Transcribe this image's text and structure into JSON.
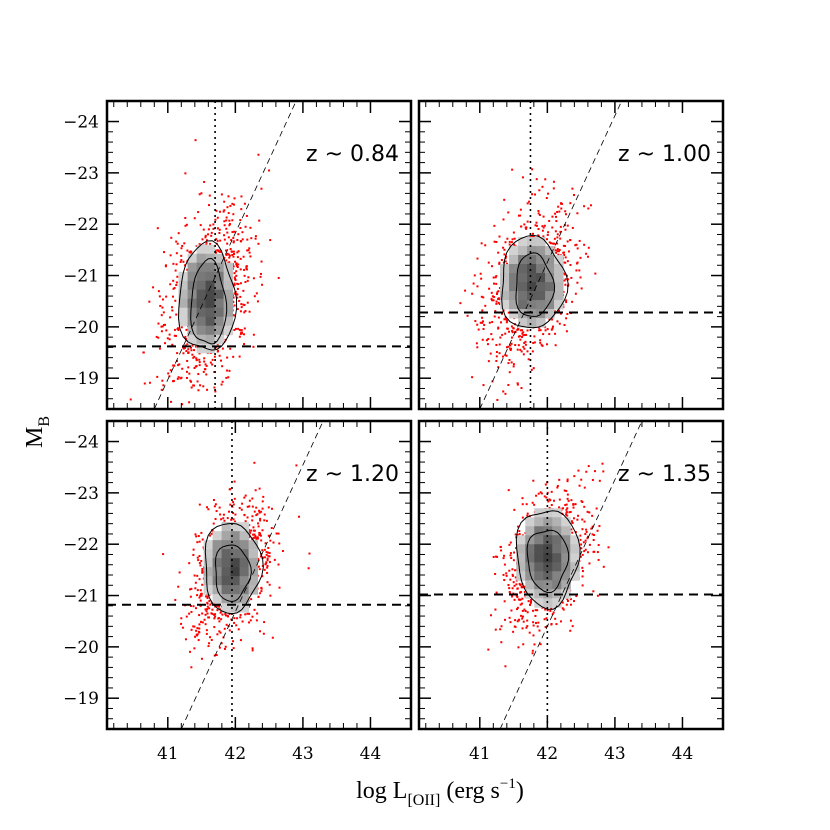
{
  "chart_data": {
    "type": "scatter",
    "xlabel": "log L",
    "xlabel_sub": "[OII]",
    "xlabel_units": " (erg s",
    "xlabel_sup": "−1",
    "xlabel_close": ")",
    "ylabel": "M",
    "ylabel_sub": "B",
    "xlim": [
      40.1,
      44.6
    ],
    "ylim": [
      -18.4,
      -24.4
    ],
    "x_ticks": [
      41,
      42,
      43,
      44
    ],
    "x_tick_labels": [
      "41",
      "42",
      "43",
      "44"
    ],
    "y_ticks": [
      -24,
      -23,
      -22,
      -21,
      -20,
      -19
    ],
    "y_tick_labels": [
      "−24",
      "−23",
      "−22",
      "−21",
      "−20",
      "−19"
    ],
    "grid": false,
    "colors": {
      "points": "#ff0000",
      "density_dark": "#3c3c3c",
      "density_light": "#d2d2d2",
      "contour": "#000000",
      "reference_lines": "#000000"
    },
    "panels": [
      {
        "label": "z  ~ 0.84",
        "position": "top-left",
        "center": {
          "x": 41.6,
          "y": -20.6
        },
        "spread": {
          "x": 0.33,
          "y": 0.8
        },
        "tilt": -0.95,
        "contour_inner": {
          "x": 41.6,
          "y": -20.45,
          "rx": 0.26,
          "ry": 0.82
        },
        "contour_outer": {
          "x": 41.58,
          "y": -20.55,
          "rx": 0.42,
          "ry": 1.05
        },
        "vertical_line_x": 41.7,
        "horizontal_line_y": -19.62,
        "diagonal_line": [
          {
            "x": 40.8,
            "y": -18.4
          },
          {
            "x": 42.9,
            "y": -24.4
          }
        ]
      },
      {
        "label": "z  ~ 1.00",
        "position": "top-right",
        "center": {
          "x": 41.75,
          "y": -20.85
        },
        "spread": {
          "x": 0.33,
          "y": 0.65
        },
        "tilt": -0.85,
        "contour_inner": {
          "x": 41.8,
          "y": -20.8,
          "rx": 0.28,
          "ry": 0.62
        },
        "contour_outer": {
          "x": 41.78,
          "y": -20.85,
          "rx": 0.48,
          "ry": 0.9
        },
        "vertical_line_x": 41.75,
        "horizontal_line_y": -20.28,
        "diagonal_line": [
          {
            "x": 41.0,
            "y": -18.4
          },
          {
            "x": 43.1,
            "y": -24.4
          }
        ]
      },
      {
        "label": "z  ~ 1.20",
        "position": "bottom-left",
        "center": {
          "x": 41.95,
          "y": -21.5
        },
        "spread": {
          "x": 0.3,
          "y": 0.6
        },
        "tilt": -0.7,
        "contour_inner": {
          "x": 41.95,
          "y": -21.45,
          "rx": 0.26,
          "ry": 0.55
        },
        "contour_outer": {
          "x": 41.95,
          "y": -21.55,
          "rx": 0.42,
          "ry": 0.88
        },
        "vertical_line_x": 41.95,
        "horizontal_line_y": -20.82,
        "diagonal_line": [
          {
            "x": 41.2,
            "y": -18.4
          },
          {
            "x": 43.3,
            "y": -24.4
          }
        ]
      },
      {
        "label": "z  ~ 1.35",
        "position": "bottom-right",
        "center": {
          "x": 42.0,
          "y": -21.75
        },
        "spread": {
          "x": 0.3,
          "y": 0.6
        },
        "tilt": -0.7,
        "contour_inner": {
          "x": 42.0,
          "y": -21.7,
          "rx": 0.3,
          "ry": 0.6
        },
        "contour_outer": {
          "x": 42.0,
          "y": -21.75,
          "rx": 0.46,
          "ry": 0.95
        },
        "vertical_line_x": 42.0,
        "horizontal_line_y": -21.02,
        "diagonal_line": [
          {
            "x": 41.3,
            "y": -18.4
          },
          {
            "x": 43.4,
            "y": -24.4
          }
        ]
      }
    ]
  }
}
